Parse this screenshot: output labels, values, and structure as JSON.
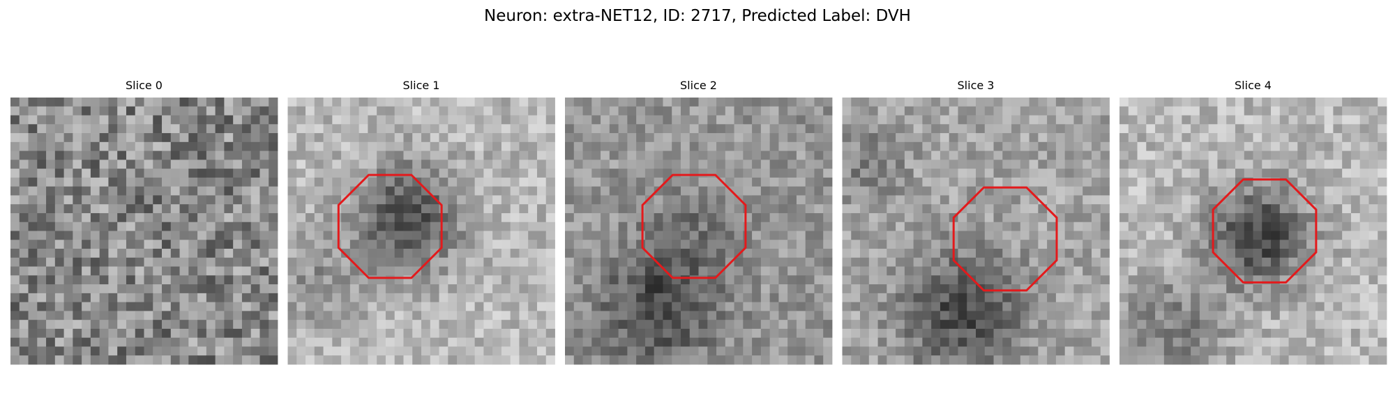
{
  "title": "Neuron: extra-NET12, ID: 2717, Predicted Label: DVH",
  "panels": [
    {
      "title": "Slice 0"
    },
    {
      "title": "Slice 1"
    },
    {
      "title": "Slice 2"
    },
    {
      "title": "Slice 3"
    },
    {
      "title": "Slice 4"
    }
  ]
}
